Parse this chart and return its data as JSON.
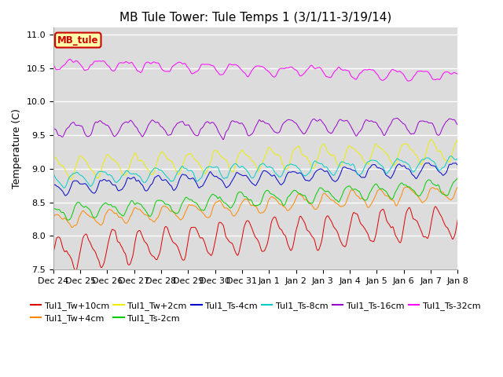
{
  "title": "MB Tule Tower: Tule Temps 1 (3/1/11-3/19/14)",
  "ylabel": "Temperature (C)",
  "ylim": [
    7.5,
    11.1
  ],
  "yticks": [
    7.5,
    8.0,
    8.5,
    9.0,
    9.5,
    10.0,
    10.5,
    11.0
  ],
  "background_color": "#dcdcdc",
  "series": [
    {
      "label": "Tul1_Tw+10cm",
      "color": "#dd0000",
      "base": 7.75,
      "trend": 0.5,
      "amp": 0.22,
      "noise_amp": 0.08
    },
    {
      "label": "Tul1_Tw+4cm",
      "color": "#ff8800",
      "base": 8.22,
      "trend": 0.45,
      "amp": 0.1,
      "noise_amp": 0.05
    },
    {
      "label": "Tul1_Tw+2cm",
      "color": "#eeee00",
      "base": 9.02,
      "trend": 0.25,
      "amp": 0.14,
      "noise_amp": 0.06
    },
    {
      "label": "Tul1_Ts-2cm",
      "color": "#00cc00",
      "base": 8.35,
      "trend": 0.4,
      "amp": 0.1,
      "noise_amp": 0.05
    },
    {
      "label": "Tul1_Ts-4cm",
      "color": "#0000cc",
      "base": 8.72,
      "trend": 0.3,
      "amp": 0.09,
      "noise_amp": 0.05
    },
    {
      "label": "Tul1_Ts-8cm",
      "color": "#00cccc",
      "base": 8.85,
      "trend": 0.25,
      "amp": 0.09,
      "noise_amp": 0.05
    },
    {
      "label": "Tul1_Ts-16cm",
      "color": "#9900cc",
      "base": 9.6,
      "trend": 0.05,
      "amp": 0.1,
      "noise_amp": 0.05
    },
    {
      "label": "Tul1_Ts-32cm",
      "color": "#ff00ff",
      "base": 10.58,
      "trend": -0.2,
      "amp": 0.07,
      "noise_amp": 0.04
    }
  ],
  "n_points": 1600,
  "n_days": 15,
  "xtick_labels": [
    "Dec 24",
    "Dec 25",
    "Dec 26",
    "Dec 27",
    "Dec 28",
    "Dec 29",
    "Dec 30",
    "Dec 31",
    "Jan 1",
    "Jan 2",
    "Jan 3",
    "Jan 4",
    "Jan 5",
    "Jan 6",
    "Jan 7",
    "Jan 8"
  ],
  "legend_box_label": "MB_tule",
  "legend_box_color": "#ffffaa",
  "legend_box_border": "#cc0000",
  "title_fontsize": 11,
  "axis_fontsize": 9,
  "tick_fontsize": 8,
  "legend_fontsize": 8
}
